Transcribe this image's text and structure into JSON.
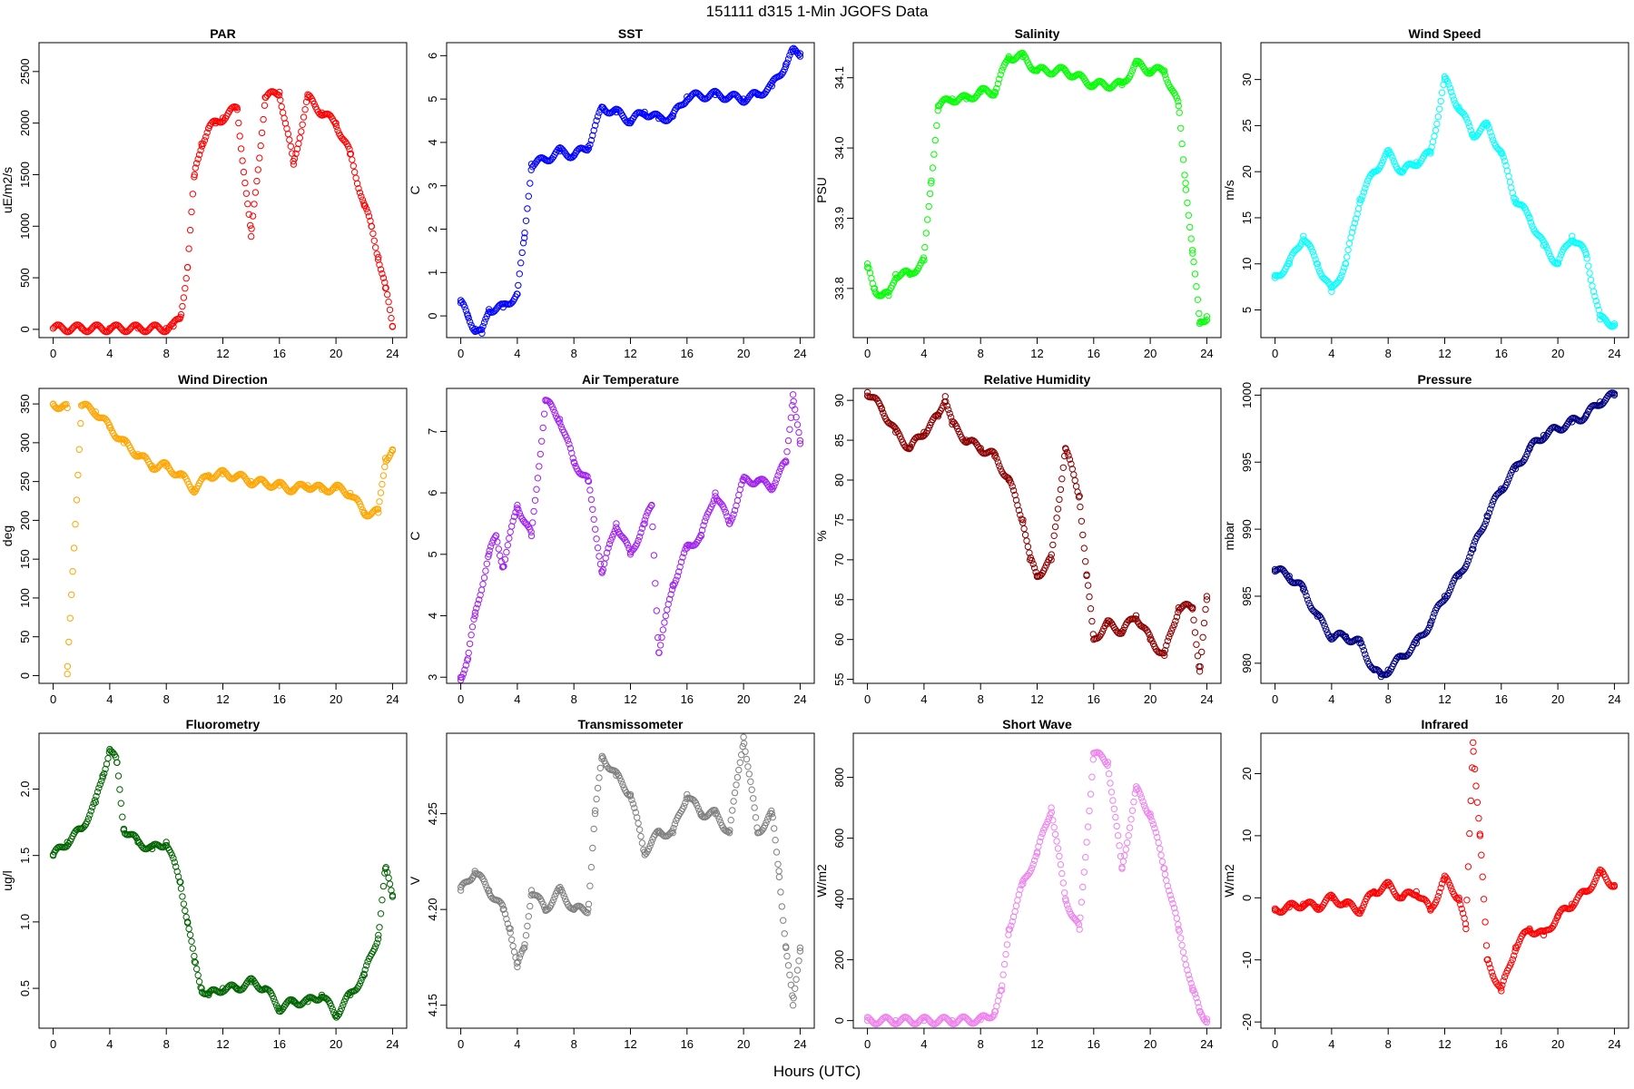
{
  "figure": {
    "title": "151111    d315    1-Min  JGOFS Data",
    "xlabel": "Hours (UTC)"
  },
  "chart_data": [
    {
      "type": "scatter",
      "title": "PAR",
      "ylabel": "uE/m2/s",
      "color": "#ff0000",
      "xlim": [
        -1,
        25
      ],
      "ylim": [
        -80,
        2780
      ],
      "xticks": [
        0,
        4,
        8,
        12,
        16,
        20,
        24
      ],
      "yticks": [
        0,
        500,
        1000,
        1500,
        2000,
        2500
      ],
      "x": [
        0,
        2,
        4,
        6,
        8,
        8.5,
        9,
        9.5,
        10,
        10.5,
        11,
        11.5,
        12,
        13,
        14,
        15,
        16,
        17,
        18,
        19,
        20,
        21,
        22,
        22.5,
        23,
        23.5,
        24
      ],
      "y": [
        10,
        10,
        10,
        10,
        10,
        30,
        120,
        600,
        1500,
        1800,
        1950,
        2000,
        2050,
        2150,
        900,
        2250,
        2300,
        1600,
        2250,
        2100,
        2000,
        1700,
        1200,
        1000,
        700,
        400,
        30
      ]
    },
    {
      "type": "scatter",
      "title": "SST",
      "ylabel": "C",
      "color": "#0000ff",
      "xlim": [
        -1,
        25
      ],
      "ylim": [
        -0.5,
        6.3
      ],
      "xticks": [
        0,
        4,
        8,
        12,
        16,
        20,
        24
      ],
      "yticks": [
        0,
        1,
        2,
        3,
        4,
        5,
        6
      ],
      "x": [
        0,
        0.5,
        1,
        1.5,
        2,
        3,
        4,
        4.5,
        5,
        6,
        7,
        8,
        9,
        10,
        11,
        12,
        13,
        14,
        15,
        16,
        18,
        20,
        21,
        22,
        23,
        23.5,
        24
      ],
      "y": [
        0.3,
        0.0,
        -0.3,
        -0.4,
        0.15,
        0.2,
        0.5,
        1.8,
        3.5,
        3.6,
        3.8,
        3.7,
        3.9,
        4.8,
        4.7,
        4.5,
        4.7,
        4.55,
        4.6,
        5.05,
        5.1,
        5.0,
        5.1,
        5.3,
        5.8,
        6.1,
        6.05
      ]
    },
    {
      "type": "scatter",
      "title": "Salinity",
      "ylabel": "PSU",
      "color": "#00ff00",
      "xlim": [
        -1,
        25
      ],
      "ylim": [
        33.73,
        34.15
      ],
      "xticks": [
        0,
        4,
        8,
        12,
        16,
        20,
        24
      ],
      "yticks": [
        33.8,
        33.9,
        34.0,
        34.1
      ],
      "x": [
        0,
        0.5,
        1,
        1.5,
        2,
        3,
        4,
        4.5,
        5,
        6,
        7,
        8,
        9,
        10,
        11,
        12,
        14,
        16,
        18,
        19,
        20,
        21,
        22,
        22.5,
        23,
        23.5,
        24
      ],
      "y": [
        33.83,
        33.8,
        33.79,
        33.79,
        33.82,
        33.82,
        33.84,
        33.95,
        34.06,
        34.07,
        34.07,
        34.08,
        34.08,
        34.13,
        34.13,
        34.11,
        34.11,
        34.09,
        34.09,
        34.12,
        34.11,
        34.11,
        34.06,
        33.95,
        33.85,
        33.75,
        33.76
      ]
    },
    {
      "type": "scatter",
      "title": "Wind Speed",
      "ylabel": "m/s",
      "color": "#00ffff",
      "xlim": [
        -1,
        25
      ],
      "ylim": [
        2,
        34
      ],
      "xticks": [
        0,
        4,
        8,
        12,
        16,
        20,
        24
      ],
      "yticks": [
        5,
        10,
        15,
        20,
        25,
        30
      ],
      "x": [
        0,
        1,
        2,
        3,
        4,
        5,
        6,
        7,
        8,
        9,
        10,
        11,
        12,
        13,
        14,
        15,
        16,
        17,
        18,
        19,
        20,
        21,
        22,
        23,
        24
      ],
      "y": [
        8.5,
        10,
        13,
        10,
        7,
        10,
        17,
        20,
        22,
        20,
        21,
        22,
        30,
        27,
        24,
        25,
        22,
        17,
        15,
        12,
        10,
        13,
        11,
        4,
        3.5
      ]
    },
    {
      "type": "scatter",
      "title": "Wind Direction",
      "ylabel": "deg",
      "color": "#ffa500",
      "xlim": [
        -1,
        25
      ],
      "ylim": [
        -10,
        370
      ],
      "xticks": [
        0,
        4,
        8,
        12,
        16,
        20,
        24
      ],
      "yticks": [
        0,
        50,
        100,
        150,
        200,
        250,
        300,
        350
      ],
      "x": [
        0,
        1,
        2,
        3,
        4,
        5,
        6,
        7,
        8,
        9,
        10,
        11,
        12,
        13,
        14,
        15,
        16,
        17,
        18,
        19,
        20,
        21,
        22,
        23,
        23.5,
        24,
        1
      ],
      "y": [
        350,
        345,
        348,
        340,
        320,
        300,
        285,
        270,
        270,
        258,
        240,
        258,
        260,
        257,
        250,
        248,
        245,
        240,
        245,
        240,
        242,
        235,
        210,
        210,
        280,
        290,
        2
      ]
    },
    {
      "type": "scatter",
      "title": "Air Temperature",
      "ylabel": "C",
      "color": "#a020f0",
      "xlim": [
        -1,
        25
      ],
      "ylim": [
        2.9,
        7.7
      ],
      "xticks": [
        0,
        4,
        8,
        12,
        16,
        20,
        24
      ],
      "yticks": [
        3,
        4,
        5,
        6,
        7
      ],
      "x": [
        0,
        0.5,
        1,
        2,
        2.5,
        3,
        4,
        5,
        6,
        7,
        8,
        9,
        10,
        11,
        12,
        13,
        13.5,
        14,
        15,
        16,
        17,
        18,
        19,
        20,
        21,
        22,
        23,
        23.5,
        24
      ],
      "y": [
        3.0,
        3.3,
        4.0,
        5.0,
        5.3,
        4.8,
        5.8,
        5.3,
        7.5,
        7.2,
        6.5,
        6.2,
        4.7,
        5.5,
        5.0,
        5.5,
        5.8,
        3.4,
        4.5,
        5.1,
        5.3,
        6.0,
        5.5,
        6.2,
        6.2,
        6.1,
        6.5,
        7.6,
        6.8
      ]
    },
    {
      "type": "scatter",
      "title": "Relative Humidity",
      "ylabel": "%",
      "color": "#8b0000",
      "xlim": [
        -1,
        25
      ],
      "ylim": [
        54.5,
        91.5
      ],
      "xticks": [
        0,
        4,
        8,
        12,
        16,
        20,
        24
      ],
      "yticks": [
        55,
        60,
        65,
        70,
        75,
        80,
        85,
        90
      ],
      "x": [
        0,
        1,
        2,
        3,
        4,
        5,
        5.5,
        6,
        7,
        8,
        9,
        10,
        11,
        11.5,
        12,
        13,
        14,
        15,
        15.5,
        16,
        17,
        18,
        19,
        20,
        21,
        22,
        23,
        23.5,
        24
      ],
      "y": [
        91,
        89,
        86,
        84,
        86,
        88,
        90.5,
        87,
        85,
        84,
        83,
        80,
        75,
        70,
        68,
        70,
        84,
        78,
        68,
        60,
        62,
        61,
        63,
        60,
        58,
        64,
        64,
        56,
        65
      ]
    },
    {
      "type": "scatter",
      "title": "Pressure",
      "ylabel": "mbar",
      "color": "#000080",
      "xlim": [
        -1,
        25
      ],
      "ylim": [
        978.5,
        1000.5
      ],
      "xticks": [
        0,
        4,
        8,
        12,
        16,
        20,
        24
      ],
      "yticks": [
        980,
        985,
        990,
        995,
        1000
      ],
      "x": [
        0,
        1,
        2,
        3,
        4,
        5,
        6,
        7,
        7.5,
        8,
        9,
        10,
        11,
        12,
        13,
        14,
        15,
        16,
        17,
        18,
        19,
        20,
        21,
        22,
        23,
        24
      ],
      "y": [
        987,
        986.5,
        985.5,
        983.5,
        982,
        982,
        981.5,
        979.5,
        979,
        979.5,
        980.5,
        981.5,
        983,
        985,
        986.5,
        988.5,
        991,
        993,
        994.5,
        996,
        997,
        997.5,
        998,
        998.5,
        999.5,
        1000
      ]
    },
    {
      "type": "scatter",
      "title": "Fluorometry",
      "ylabel": "ug/l",
      "color": "#006400",
      "xlim": [
        -1,
        25
      ],
      "ylim": [
        0.2,
        2.42
      ],
      "xticks": [
        0,
        4,
        8,
        12,
        16,
        20,
        24
      ],
      "yticks": [
        0.5,
        1.0,
        1.5,
        2.0
      ],
      "x": [
        0,
        1,
        2,
        3,
        3.5,
        4,
        4.5,
        5,
        6,
        7,
        8,
        9,
        9.5,
        10,
        10.5,
        11,
        12,
        13,
        14,
        15,
        16,
        17,
        18,
        19,
        20,
        21,
        22,
        23,
        23.5,
        24
      ],
      "y": [
        1.5,
        1.6,
        1.7,
        1.9,
        2.1,
        2.3,
        2.2,
        1.7,
        1.6,
        1.55,
        1.6,
        1.3,
        1.0,
        0.7,
        0.5,
        0.45,
        0.5,
        0.5,
        0.55,
        0.5,
        0.35,
        0.4,
        0.4,
        0.45,
        0.3,
        0.45,
        0.6,
        0.9,
        1.4,
        1.2
      ]
    },
    {
      "type": "scatter",
      "title": "Transmissometer",
      "ylabel": "V",
      "color": "#808080",
      "xlim": [
        -1,
        25
      ],
      "ylim": [
        4.138,
        4.292
      ],
      "xticks": [
        0,
        4,
        8,
        12,
        16,
        20,
        24
      ],
      "yticks": [
        4.15,
        4.2,
        4.25
      ],
      "x": [
        0,
        1,
        2,
        3,
        3.5,
        4,
        4.5,
        5,
        6,
        7,
        8,
        9,
        9.5,
        10,
        11,
        12,
        13,
        14,
        15,
        16,
        17,
        18,
        19,
        20,
        21,
        22,
        22.5,
        23,
        23.5,
        24
      ],
      "y": [
        4.21,
        4.22,
        4.21,
        4.2,
        4.19,
        4.17,
        4.18,
        4.21,
        4.2,
        4.21,
        4.2,
        4.2,
        4.25,
        4.28,
        4.27,
        4.26,
        4.23,
        4.24,
        4.24,
        4.26,
        4.25,
        4.25,
        4.24,
        4.29,
        4.24,
        4.25,
        4.22,
        4.18,
        4.15,
        4.18
      ]
    },
    {
      "type": "scatter",
      "title": "Short Wave",
      "ylabel": "W/m2",
      "color": "#ee82ee",
      "xlim": [
        -1,
        25
      ],
      "ylim": [
        -25,
        945
      ],
      "xticks": [
        0,
        4,
        8,
        12,
        16,
        20,
        24
      ],
      "yticks": [
        0,
        200,
        400,
        600,
        800
      ],
      "x": [
        0,
        2,
        4,
        6,
        8,
        8.5,
        9,
        9.5,
        10,
        11,
        12,
        13,
        14,
        15,
        16,
        17,
        18,
        19,
        20,
        21,
        22,
        23,
        23.5,
        24
      ],
      "y": [
        0,
        0,
        0,
        0,
        3,
        10,
        30,
        100,
        300,
        450,
        550,
        700,
        400,
        300,
        880,
        850,
        500,
        760,
        680,
        500,
        300,
        100,
        30,
        5
      ]
    },
    {
      "type": "scatter",
      "title": "Infrared",
      "ylabel": "W/m2",
      "color": "#ff0000",
      "xlim": [
        -1,
        25
      ],
      "ylim": [
        -21,
        26.5
      ],
      "xticks": [
        0,
        4,
        8,
        12,
        16,
        20,
        24
      ],
      "yticks": [
        -20,
        -10,
        0,
        10,
        20
      ],
      "x": [
        0,
        1,
        2,
        3,
        4,
        5,
        6,
        7,
        8,
        9,
        10,
        11,
        12,
        13,
        13.5,
        14,
        14.5,
        15,
        16,
        17,
        18,
        19,
        20,
        21,
        22,
        23,
        24
      ],
      "y": [
        -2,
        -1.5,
        -1,
        -1.5,
        0,
        -1,
        -2,
        1,
        2,
        0,
        1,
        -2,
        3,
        0,
        -5,
        25,
        10,
        -10,
        -15,
        -8,
        -5,
        -6,
        -3,
        -1,
        1,
        4,
        2
      ]
    }
  ]
}
